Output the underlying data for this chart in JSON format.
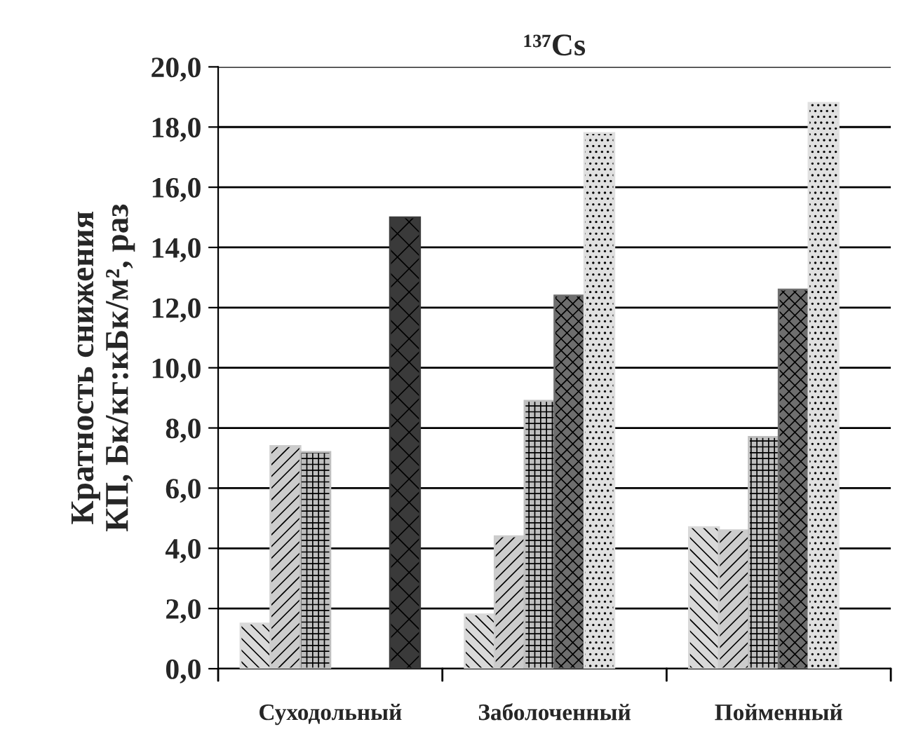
{
  "chart_data": {
    "type": "bar",
    "title": "¹³⁷Cs",
    "ylabel": "Кратность снижения\nКП, Бк/кг:кБк/м², раз",
    "categories": [
      "Суходольный",
      "Заболоченный",
      "Пойменный"
    ],
    "series": [
      {
        "color": "#d9d9d9",
        "values": [
          1.5,
          1.8,
          4.7
        ]
      },
      {
        "color": "#cccccc",
        "values": [
          7.4,
          4.4,
          4.6
        ]
      },
      {
        "color": "#bfbfbf",
        "values": [
          7.2,
          8.9,
          7.7
        ]
      },
      {
        "color": "#6e6e6e",
        "values": [
          null,
          12.4,
          12.6
        ]
      },
      {
        "color": "#e0e0e0",
        "values": [
          null,
          17.8,
          18.8
        ]
      },
      {
        "color": "#3a3a3a",
        "values": [
          15.0,
          null,
          null
        ]
      }
    ],
    "ylim": [
      0,
      20
    ],
    "yticks": [
      {
        "value": 0,
        "label": "0,0"
      },
      {
        "value": 2,
        "label": "2,0"
      },
      {
        "value": 4,
        "label": "4,0"
      },
      {
        "value": 6,
        "label": "6,0"
      },
      {
        "value": 8,
        "label": "8,0"
      },
      {
        "value": 10,
        "label": "10,0"
      },
      {
        "value": 12,
        "label": "12,0"
      },
      {
        "value": 14,
        "label": "14,0"
      },
      {
        "value": 16,
        "label": "16,0"
      },
      {
        "value": 18,
        "label": "18,0"
      },
      {
        "value": 20,
        "label": "20,0"
      }
    ],
    "grid": "y",
    "legend": false
  }
}
